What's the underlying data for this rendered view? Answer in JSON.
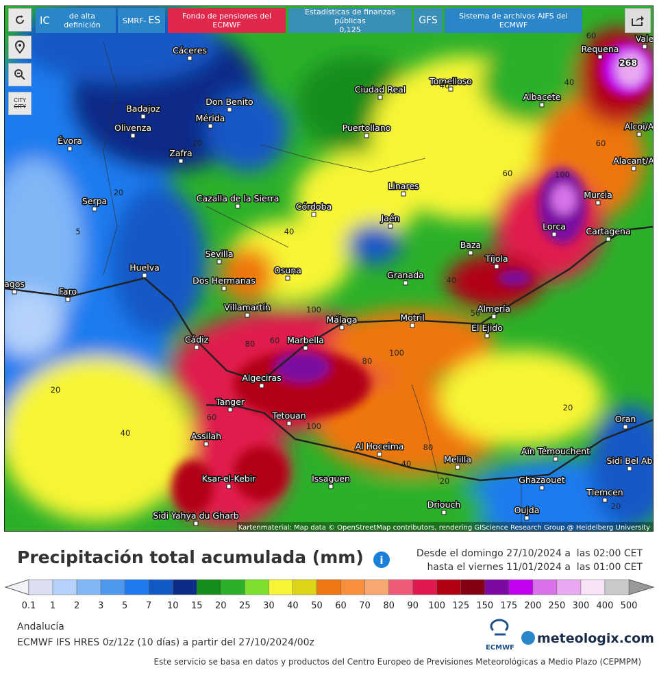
{
  "toolbar": {
    "hd_prefix": "IC",
    "hd": "de alta definición",
    "smrf": "SMRF-",
    "smrf_region": "ES",
    "pension": "Fondo de pensiones del ECMWF",
    "stats": "Estadísticas de finanzas públicas",
    "stats_value": "0,125",
    "gfs": "GFS",
    "aifs": "Sistema de archivos AIFS del ECMWF",
    "city": "CITY"
  },
  "map": {
    "cities": [
      "Cáceres",
      "Badajoz",
      "Don Benito",
      "Mérida",
      "Olivenza",
      "Évora",
      "Zafra",
      "Ciudad Real",
      "Puertollano",
      "Tomelloso",
      "Albacete",
      "Requena",
      "Alcoi/A",
      "Alacant/A",
      "Linares",
      "Cazalla de la Sierra",
      "Córdoba",
      "Jaén",
      "Murcia",
      "Lorca",
      "Cartagena",
      "Serpa",
      "Sevilla",
      "Osuna",
      "Dos Hermanas",
      "Huelva",
      "Baza",
      "Tíjola",
      "Granada",
      "Faro",
      "Villamartín",
      "Almería",
      "Málaga",
      "Motril",
      "El Ejido",
      "Cádiz",
      "Marbella",
      "Algeciras",
      "Tanger",
      "Tetouan",
      "Assilah",
      "Al Hoceima",
      "Melilla",
      "Oran",
      "Aïn Témouchent",
      "Sidi Bel Ab",
      "Ghazaouet",
      "Tlemcen",
      "Oujda",
      "Driouch",
      "Issaguen",
      "Ksar-el-Kebir",
      "Sidi Yahya du Gharb",
      "Vale",
      "agos"
    ],
    "contour_labels": [
      "268",
      "60",
      "40",
      "60",
      "60",
      "100",
      "20",
      "20",
      "5",
      "40",
      "40",
      "50",
      "100",
      "80",
      "60",
      "80",
      "100",
      "20",
      "40",
      "80",
      "20",
      "60",
      "40",
      "100",
      "20",
      "20",
      "40"
    ],
    "credit": "Kartenmaterial: Map data © OpenStreetMap contributors, rendering GIScience Research Group @ Heidelberg University"
  },
  "legend": {
    "title": "Precipitación total acumulada (mm)",
    "from": "Desde el domingo 27/10/2024 a  las 02:00 CET",
    "to": "hasta el viernes 11/01/2024 a  las 01:00 CET",
    "labels": [
      "0.1",
      "1",
      "2",
      "3",
      "5",
      "7",
      "10",
      "15",
      "20",
      "25",
      "30",
      "40",
      "50",
      "60",
      "70",
      "80",
      "90",
      "100",
      "125",
      "150",
      "175",
      "200",
      "250",
      "300",
      "400",
      "500"
    ],
    "colors": [
      "#dcdff2",
      "#b4d2fa",
      "#80b6f6",
      "#4e97ee",
      "#1e7bef",
      "#1259c6",
      "#0c2c88",
      "#168d1a",
      "#2bb02a",
      "#7ee02c",
      "#f7f536",
      "#ddd417",
      "#ef7611",
      "#f78f3c",
      "#f6a870",
      "#ef5a78",
      "#e01a4e",
      "#b20012",
      "#820012",
      "#7a0aa2",
      "#c201f0",
      "#d972e8",
      "#e9a9f1",
      "#f8e2f8",
      "#c9c9c9"
    ]
  },
  "footer": {
    "region": "Andalucía",
    "model": "ECMWF IFS HRES 0z/12z (10 días) a partir del 27/10/2024/00z",
    "ecmwf": "ECMWF",
    "brand": "meteologix.com",
    "source": "Este servicio se basa en datos y productos del Centro Europeo de Previsiones Meteorológicas a Medio Plazo (CEPMPM)"
  }
}
